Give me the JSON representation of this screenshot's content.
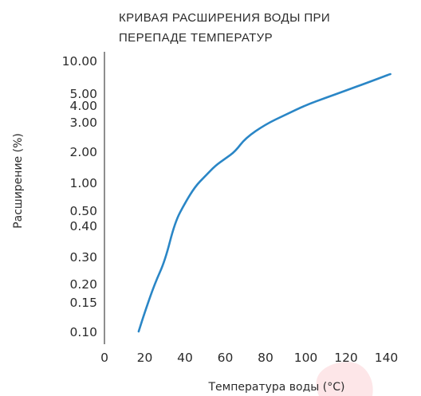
{
  "chart_data": {
    "type": "line",
    "title_lines": [
      "КРИВАЯ РАСШИРЕНИЯ ВОДЫ ПРИ",
      "ПЕРЕПАДЕ ТЕМПЕРАТУР"
    ],
    "xlabel": "Температура воды (°C)",
    "ylabel": "Расширение (%)",
    "x_ticks": [
      "0",
      "20",
      "40",
      "60",
      "80",
      "100",
      "120",
      "140"
    ],
    "y_ticks": [
      "10.00",
      "5.00",
      "4.00",
      "3.00",
      "2.00",
      "1.00",
      "0.50",
      "0.40",
      "0.30",
      "0.20",
      "0.15",
      "0.10"
    ],
    "grid": false,
    "line_color": "#2a86c6",
    "series": [
      {
        "x": [
          17,
          20,
          25,
          30,
          35,
          40,
          45,
          50,
          55,
          60,
          65,
          70,
          80,
          90,
          100,
          110,
          120,
          130,
          142
        ],
        "y": [
          0.1,
          0.13,
          0.2,
          0.28,
          0.42,
          0.6,
          0.9,
          1.15,
          1.45,
          1.7,
          2.0,
          2.4,
          2.9,
          3.4,
          4.0,
          4.6,
          5.3,
          6.2,
          7.5
        ]
      }
    ],
    "watermark": {
      "color": "#ef3340"
    }
  }
}
